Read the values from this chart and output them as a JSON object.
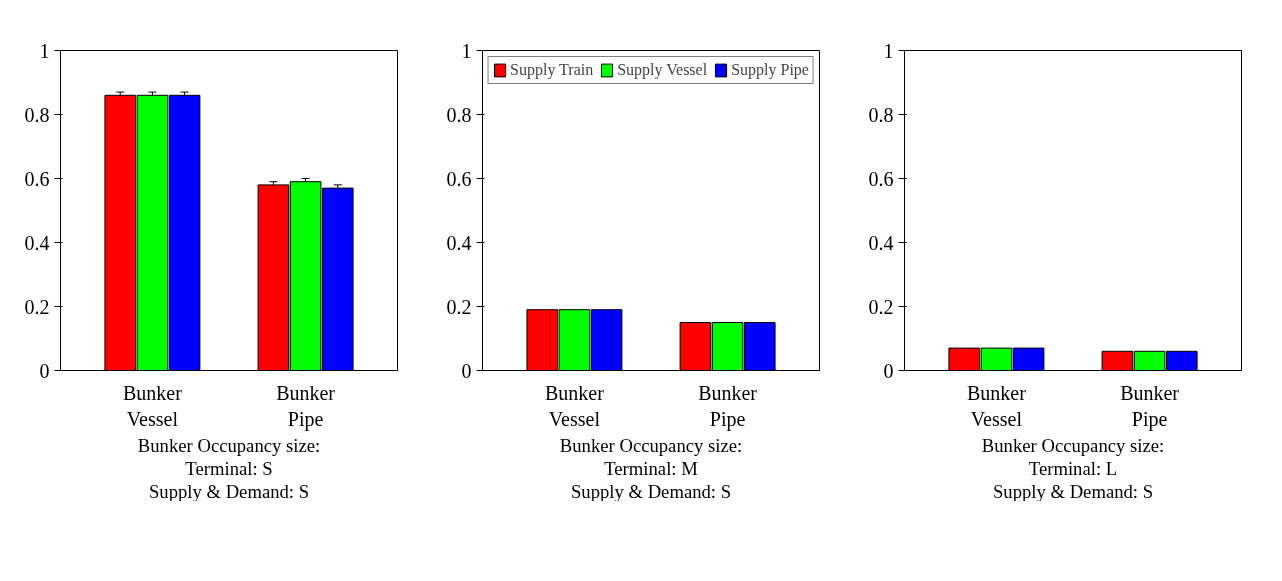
{
  "chart_data": [
    {
      "type": "bar",
      "categories": [
        "Bunker\nVessel",
        "Bunker\nPipe"
      ],
      "xlabel": "Bunker Occupancy size:\nTerminal: S\nSupply & Demand: S",
      "ylim": [
        0,
        1
      ],
      "yticks": [
        0,
        0.2,
        0.4,
        0.6,
        0.8,
        1
      ],
      "grid": false,
      "series": [
        {
          "color": "#ff0000",
          "values": [
            0.86,
            0.58
          ],
          "errors": [
            0.01,
            0.01
          ]
        },
        {
          "color": "#00ff00",
          "values": [
            0.86,
            0.59
          ],
          "errors": [
            0.01,
            0.01
          ]
        },
        {
          "color": "#0000ff",
          "values": [
            0.86,
            0.57
          ],
          "errors": [
            0.01,
            0.01
          ]
        }
      ]
    },
    {
      "type": "bar",
      "categories": [
        "Bunker\nVessel",
        "Bunker\nPipe"
      ],
      "xlabel": "Bunker Occupancy size:\nTerminal: M\nSupply & Demand: S",
      "ylim": [
        0,
        1
      ],
      "yticks": [
        0,
        0.2,
        0.4,
        0.6,
        0.8,
        1
      ],
      "grid": false,
      "legend": "top",
      "series": [
        {
          "name": "Supply Train",
          "color": "#ff0000",
          "values": [
            0.19,
            0.15
          ]
        },
        {
          "name": "Supply Vessel",
          "color": "#00ff00",
          "values": [
            0.19,
            0.15
          ]
        },
        {
          "name": "Supply Pipe",
          "color": "#0000ff",
          "values": [
            0.19,
            0.15
          ]
        }
      ]
    },
    {
      "type": "bar",
      "categories": [
        "Bunker\nVessel",
        "Bunker\nPipe"
      ],
      "xlabel": "Bunker Occupancy size:\nTerminal: L\nSupply & Demand: S",
      "ylim": [
        0,
        1
      ],
      "yticks": [
        0,
        0.2,
        0.4,
        0.6,
        0.8,
        1
      ],
      "grid": false,
      "series": [
        {
          "color": "#ff0000",
          "values": [
            0.07,
            0.06
          ]
        },
        {
          "color": "#00ff00",
          "values": [
            0.07,
            0.06
          ]
        },
        {
          "color": "#0000ff",
          "values": [
            0.07,
            0.06
          ]
        }
      ]
    }
  ]
}
